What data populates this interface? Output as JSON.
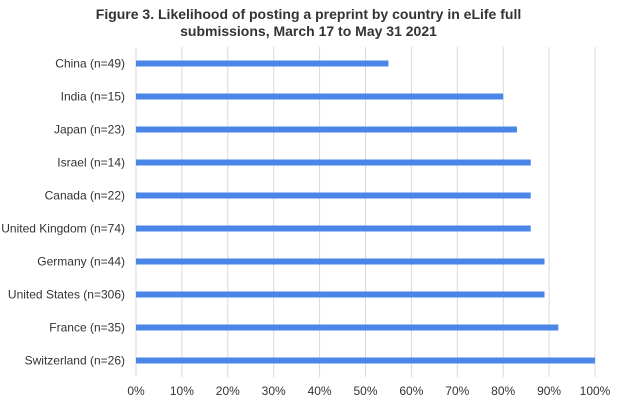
{
  "chart_data": {
    "type": "bar",
    "orientation": "horizontal",
    "title_lines": [
      "Figure 3. Likelihood of posting a preprint by country in eLife full",
      "submissions, March 17 to May 31 2021"
    ],
    "categories": [
      "China (n=49)",
      "India (n=15)",
      "Japan (n=23)",
      "Israel (n=14)",
      "Canada (n=22)",
      "United Kingdom (n=74)",
      "Germany (n=44)",
      "United States (n=306)",
      "France (n=35)",
      "Switzerland (n=26)"
    ],
    "values": [
      55,
      80,
      83,
      86,
      86,
      86,
      89,
      89,
      92,
      100
    ],
    "xlim": [
      0,
      100
    ],
    "x_ticks": [
      "0%",
      "10%",
      "20%",
      "30%",
      "40%",
      "50%",
      "60%",
      "70%",
      "80%",
      "90%",
      "100%"
    ],
    "grid": "vertical",
    "legend": "none",
    "bar_color": "#4a86e8",
    "grid_color": "#d9d9d9"
  }
}
